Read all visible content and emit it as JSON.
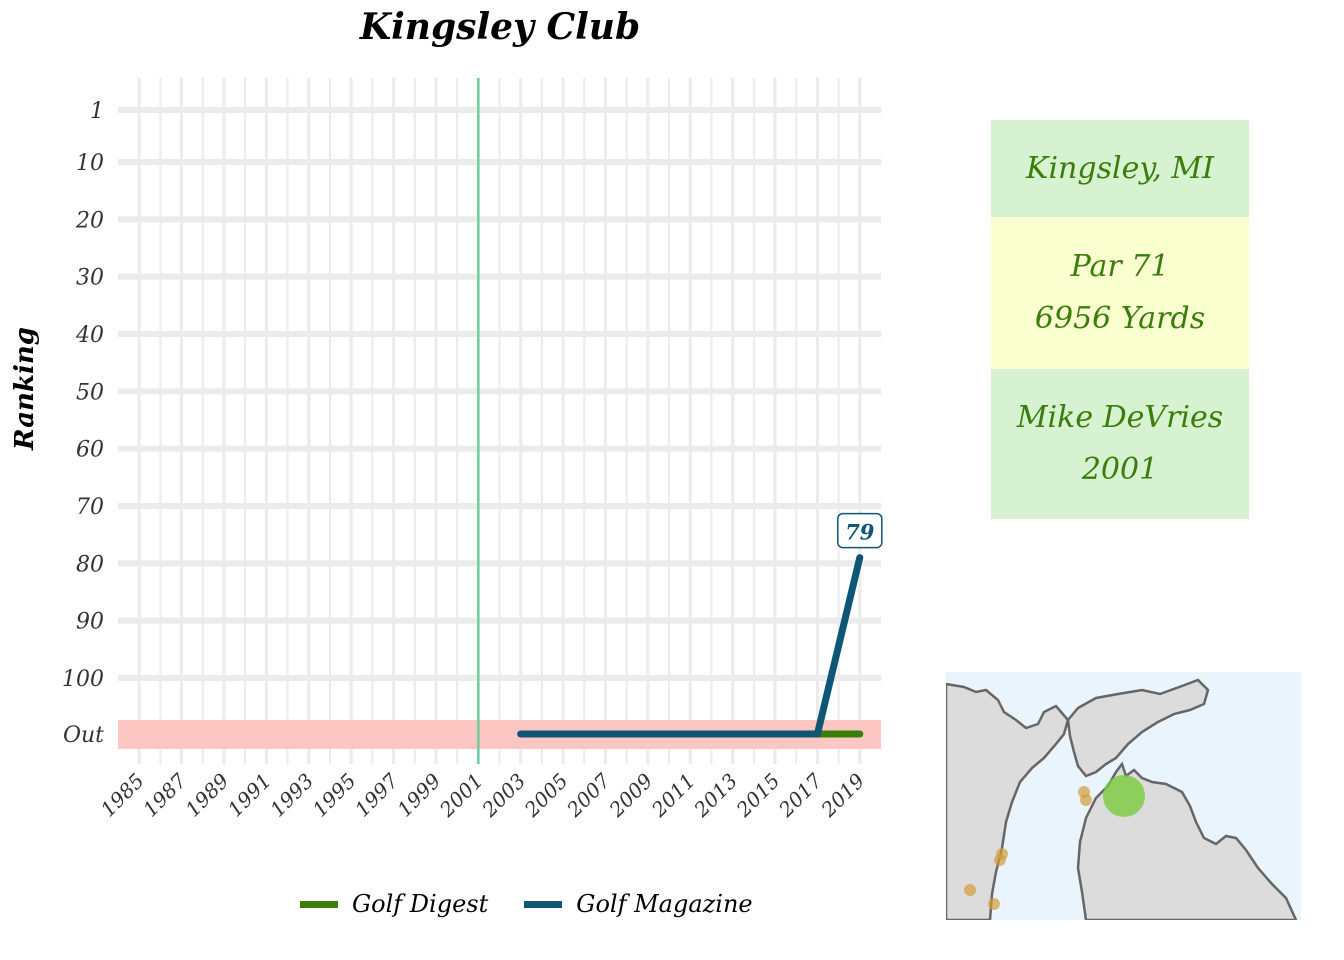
{
  "chart_data": {
    "type": "line",
    "title": "Kingsley Club",
    "xlabel": "",
    "ylabel": "Ranking",
    "x_ticks": [
      "1985",
      "1987",
      "1989",
      "1991",
      "1993",
      "1995",
      "1997",
      "1999",
      "2001",
      "2003",
      "2005",
      "2007",
      "2009",
      "2011",
      "2013",
      "2015",
      "2017",
      "2019"
    ],
    "y_ticks": [
      "1",
      "10",
      "20",
      "30",
      "40",
      "50",
      "60",
      "70",
      "80",
      "90",
      "100",
      "Out"
    ],
    "xlim": [
      1984,
      2020
    ],
    "ylim": [
      1,
      110
    ],
    "out_band_label": "Out",
    "reference_line_year": 2001,
    "series": [
      {
        "name": "Golf Digest",
        "color": "#3a7d0a",
        "points": [
          [
            2017,
            "Out"
          ],
          [
            2019,
            "Out"
          ]
        ]
      },
      {
        "name": "Golf Magazine",
        "color": "#0f5575",
        "points": [
          [
            2003,
            "Out"
          ],
          [
            2017,
            "Out"
          ],
          [
            2019,
            79
          ]
        ]
      }
    ],
    "annotations": [
      {
        "x": 2019,
        "y": 79,
        "text": "79"
      }
    ],
    "grid": true,
    "legend_position": "bottom"
  },
  "info": {
    "location": "Kingsley, MI",
    "par": "Par 71",
    "yards": "6956 Yards",
    "architect": "Mike DeVries",
    "year": "2001"
  },
  "colors": {
    "out_band": "#fcc6c3",
    "reference_line": "#6ccf9e",
    "grid": "#ebebeb",
    "map_water": "#eaf4fd",
    "map_land": "#dcdcdc",
    "map_highlight": "#7acb3c",
    "map_other": "#d39c3a"
  }
}
